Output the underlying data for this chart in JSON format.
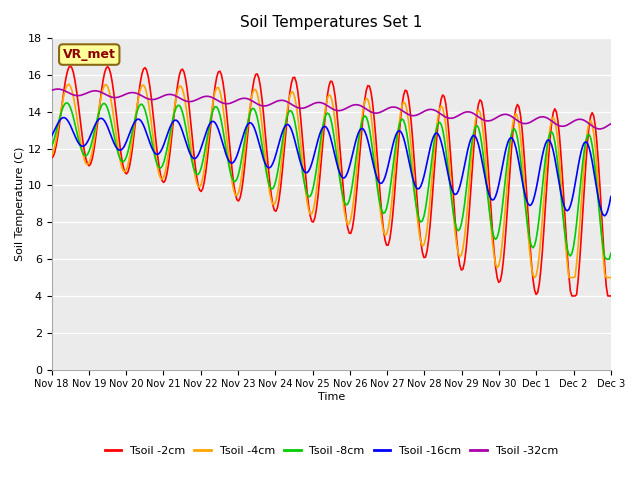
{
  "title": "Soil Temperatures Set 1",
  "xlabel": "Time",
  "ylabel": "Soil Temperature (C)",
  "ylim": [
    0,
    18
  ],
  "yticks": [
    0,
    2,
    4,
    6,
    8,
    10,
    12,
    14,
    16,
    18
  ],
  "annotation_text": "VR_met",
  "annotation_color": "#8B0000",
  "annotation_bg": "#FFFF99",
  "legend_entries": [
    "Tsoil -2cm",
    "Tsoil -4cm",
    "Tsoil -8cm",
    "Tsoil -16cm",
    "Tsoil -32cm"
  ],
  "line_colors": [
    "#FF0000",
    "#FFA500",
    "#00CC00",
    "#0000FF",
    "#AA00AA"
  ],
  "line_widths": [
    1.2,
    1.2,
    1.2,
    1.2,
    1.2
  ],
  "xtick_labels": [
    "Nov 18",
    "Nov 19",
    "Nov 20",
    "Nov 21",
    "Nov 22",
    "Nov 23",
    "Nov 24",
    "Nov 25",
    "Nov 26",
    "Nov 27",
    "Nov 28",
    "Nov 29",
    "Nov 30",
    "Dec 1",
    "Dec 2",
    "Dec 3"
  ],
  "num_days": 15,
  "points_per_day": 24
}
